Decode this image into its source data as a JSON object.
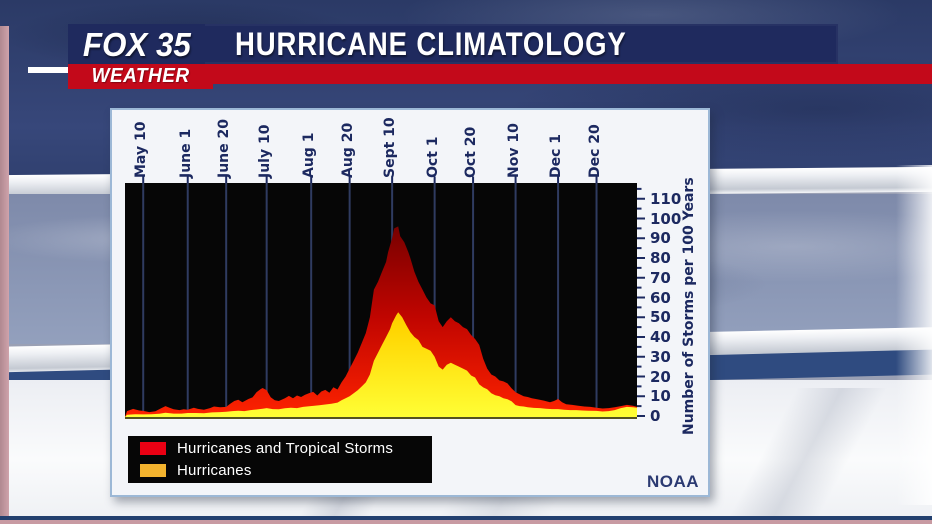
{
  "header": {
    "station": "FOX 35",
    "sub_brand": "WEATHER",
    "title": "HURRICANE CLIMATOLOGY"
  },
  "panel": {
    "source_credit": "NOAA"
  },
  "colors": {
    "banner_navy": "#1f2a5e",
    "stripe_red": "#c3091a",
    "plot_background": "#060606",
    "gridline": "#2f3b60",
    "axis_tick": "#1c2960",
    "axis_text": "#1c2960"
  },
  "chart_data": {
    "type": "area",
    "title": "Hurricane Climatology",
    "ylabel": "Number of Storms per 100 Years",
    "y_ticks": [
      0,
      10,
      20,
      30,
      40,
      50,
      60,
      70,
      80,
      90,
      100,
      110
    ],
    "ylim": [
      0,
      118
    ],
    "x_domain_days_from_may1": [
      0,
      253
    ],
    "x_tick_labels": [
      "May 10",
      "June 1",
      "June 20",
      "July 10",
      "Aug 1",
      "Aug 20",
      "Sept 10",
      "Oct 1",
      "Oct 20",
      "Nov 10",
      "Dec 1",
      "Dec 20"
    ],
    "x_tick_days": [
      9,
      31,
      50,
      70,
      92,
      111,
      132,
      153,
      172,
      193,
      214,
      233
    ],
    "grid": "vertical-only",
    "legend_position": "bottom-left",
    "series": [
      {
        "name": "Hurricanes and Tropical Storms",
        "legend_color": "#ea0013",
        "gradient": [
          [
            0,
            "#6f0000"
          ],
          [
            0.5,
            "#c00500"
          ],
          [
            1,
            "#ff2300"
          ]
        ],
        "points": [
          [
            1,
            2.5
          ],
          [
            4,
            3.6
          ],
          [
            7,
            2.8
          ],
          [
            9,
            2.6
          ],
          [
            12,
            2
          ],
          [
            15,
            2.4
          ],
          [
            18,
            4
          ],
          [
            20,
            5
          ],
          [
            22,
            4.2
          ],
          [
            24,
            3.4
          ],
          [
            27,
            3
          ],
          [
            29,
            3.4
          ],
          [
            31,
            3.2
          ],
          [
            34,
            4.2
          ],
          [
            36,
            3.6
          ],
          [
            39,
            3.2
          ],
          [
            42,
            4
          ],
          [
            44,
            4.8
          ],
          [
            47,
            4.4
          ],
          [
            50,
            4.6
          ],
          [
            52,
            6.2
          ],
          [
            54,
            7.6
          ],
          [
            56,
            8.2
          ],
          [
            58,
            7
          ],
          [
            61,
            8.6
          ],
          [
            63,
            9.4
          ],
          [
            65,
            12
          ],
          [
            67,
            13.6
          ],
          [
            68,
            14.2
          ],
          [
            70,
            13
          ],
          [
            72,
            9.5
          ],
          [
            74,
            8
          ],
          [
            76,
            7.6
          ],
          [
            79,
            9
          ],
          [
            81,
            10.2
          ],
          [
            83,
            9
          ],
          [
            85,
            10.4
          ],
          [
            87,
            9.6
          ],
          [
            89,
            10.8
          ],
          [
            91,
            11.6
          ],
          [
            93,
            12.2
          ],
          [
            95,
            10.4
          ],
          [
            97,
            12.4
          ],
          [
            99,
            13.2
          ],
          [
            101,
            11.8
          ],
          [
            103,
            14.6
          ],
          [
            105,
            13.4
          ],
          [
            107,
            17
          ],
          [
            109,
            20
          ],
          [
            111,
            24
          ],
          [
            113,
            28
          ],
          [
            115,
            32
          ],
          [
            117,
            37
          ],
          [
            119,
            42
          ],
          [
            121,
            50
          ],
          [
            123,
            64
          ],
          [
            125,
            68
          ],
          [
            127,
            73
          ],
          [
            129,
            78
          ],
          [
            130,
            83
          ],
          [
            132,
            90
          ],
          [
            133,
            95
          ],
          [
            135,
            96
          ],
          [
            136,
            91
          ],
          [
            138,
            88
          ],
          [
            140,
            83
          ],
          [
            141,
            80
          ],
          [
            143,
            73
          ],
          [
            145,
            68
          ],
          [
            147,
            64
          ],
          [
            149,
            60
          ],
          [
            151,
            57
          ],
          [
            153,
            56
          ],
          [
            155,
            48
          ],
          [
            157,
            45
          ],
          [
            159,
            48
          ],
          [
            161,
            50
          ],
          [
            163,
            48
          ],
          [
            165,
            47
          ],
          [
            167,
            45
          ],
          [
            169,
            44
          ],
          [
            171,
            41
          ],
          [
            173,
            39
          ],
          [
            175,
            36
          ],
          [
            177,
            29
          ],
          [
            179,
            24
          ],
          [
            181,
            21
          ],
          [
            183,
            20
          ],
          [
            185,
            18
          ],
          [
            187,
            17.5
          ],
          [
            189,
            16.5
          ],
          [
            191,
            14
          ],
          [
            193,
            12
          ],
          [
            195,
            11
          ],
          [
            197,
            10
          ],
          [
            199,
            9.6
          ],
          [
            201,
            9
          ],
          [
            204,
            8.4
          ],
          [
            207,
            7.8
          ],
          [
            210,
            7
          ],
          [
            212,
            7.6
          ],
          [
            214,
            8.6
          ],
          [
            216,
            7
          ],
          [
            218,
            6
          ],
          [
            221,
            5.6
          ],
          [
            224,
            5.2
          ],
          [
            227,
            4.8
          ],
          [
            230,
            4.6
          ],
          [
            233,
            4.2
          ],
          [
            236,
            3.8
          ],
          [
            239,
            4
          ],
          [
            242,
            4.4
          ],
          [
            245,
            5
          ],
          [
            248,
            5.6
          ],
          [
            251,
            5.2
          ],
          [
            253,
            4.6
          ]
        ]
      },
      {
        "name": "Hurricanes",
        "legend_color": "#f3b32e",
        "gradient": [
          [
            0,
            "#ee9600"
          ],
          [
            0.55,
            "#ffd400"
          ],
          [
            1,
            "#ffff36"
          ]
        ],
        "points": [
          [
            1,
            0.6
          ],
          [
            5,
            0.9
          ],
          [
            9,
            0.8
          ],
          [
            13,
            0.9
          ],
          [
            17,
            1.1
          ],
          [
            20,
            1.6
          ],
          [
            24,
            1.2
          ],
          [
            28,
            1.2
          ],
          [
            31,
            1.5
          ],
          [
            35,
            1.5
          ],
          [
            39,
            1.4
          ],
          [
            43,
            1.8
          ],
          [
            47,
            2
          ],
          [
            50,
            2.2
          ],
          [
            53,
            2.5
          ],
          [
            56,
            2.7
          ],
          [
            59,
            2.5
          ],
          [
            62,
            3
          ],
          [
            65,
            3.3
          ],
          [
            68,
            3.7
          ],
          [
            70,
            4
          ],
          [
            73,
            3.5
          ],
          [
            76,
            3.4
          ],
          [
            79,
            3.9
          ],
          [
            82,
            4.2
          ],
          [
            85,
            4
          ],
          [
            88,
            4.6
          ],
          [
            91,
            4.9
          ],
          [
            93,
            5.1
          ],
          [
            96,
            5.4
          ],
          [
            99,
            5.8
          ],
          [
            102,
            6.2
          ],
          [
            105,
            6.8
          ],
          [
            107,
            8
          ],
          [
            109,
            9
          ],
          [
            111,
            10
          ],
          [
            113,
            11.5
          ],
          [
            115,
            13
          ],
          [
            117,
            15
          ],
          [
            119,
            17
          ],
          [
            121,
            21
          ],
          [
            123,
            28
          ],
          [
            125,
            32
          ],
          [
            127,
            36
          ],
          [
            129,
            40
          ],
          [
            131,
            44
          ],
          [
            132,
            47
          ],
          [
            134,
            51
          ],
          [
            135,
            52.5
          ],
          [
            137,
            50
          ],
          [
            139,
            46
          ],
          [
            141,
            42.5
          ],
          [
            143,
            40
          ],
          [
            145,
            38.5
          ],
          [
            147,
            35
          ],
          [
            149,
            34
          ],
          [
            151,
            33
          ],
          [
            153,
            30
          ],
          [
            155,
            25
          ],
          [
            157,
            23.5
          ],
          [
            159,
            26
          ],
          [
            161,
            27
          ],
          [
            163,
            26
          ],
          [
            165,
            25
          ],
          [
            167,
            24
          ],
          [
            169,
            23
          ],
          [
            171,
            20.5
          ],
          [
            173,
            19.5
          ],
          [
            175,
            16
          ],
          [
            177,
            14.5
          ],
          [
            179,
            13.5
          ],
          [
            181,
            11.5
          ],
          [
            183,
            10.5
          ],
          [
            185,
            10
          ],
          [
            187,
            9
          ],
          [
            189,
            8.5
          ],
          [
            191,
            7.5
          ],
          [
            193,
            5.5
          ],
          [
            195,
            5
          ],
          [
            197,
            4.8
          ],
          [
            199,
            4.4
          ],
          [
            202,
            4.1
          ],
          [
            205,
            4
          ],
          [
            208,
            3.7
          ],
          [
            211,
            3.5
          ],
          [
            214,
            3.5
          ],
          [
            217,
            3.2
          ],
          [
            220,
            3
          ],
          [
            223,
            3
          ],
          [
            226,
            2.8
          ],
          [
            229,
            2.7
          ],
          [
            233,
            2.6
          ],
          [
            236,
            2.3
          ],
          [
            239,
            2.5
          ],
          [
            242,
            3
          ],
          [
            245,
            4
          ],
          [
            248,
            4.6
          ],
          [
            251,
            4.4
          ],
          [
            253,
            4.2
          ]
        ]
      }
    ]
  }
}
